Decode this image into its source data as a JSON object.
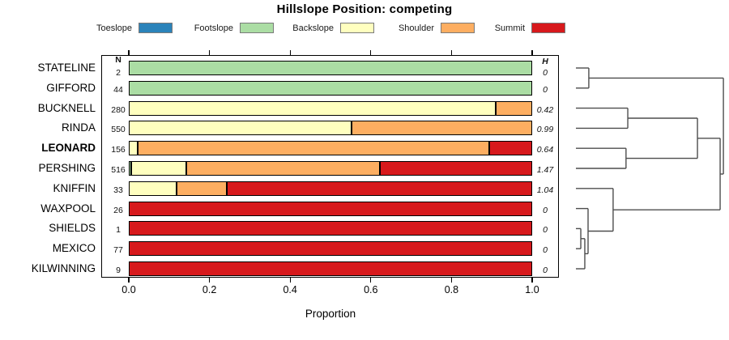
{
  "title": "Hillslope Position: competing",
  "legend": {
    "items": [
      {
        "label": "Toeslope",
        "color": "#2B83BA"
      },
      {
        "label": "Footslope",
        "color": "#ABDDA4"
      },
      {
        "label": "Backslope",
        "color": "#FFFFBF"
      },
      {
        "label": "Shoulder",
        "color": "#FDAE61"
      },
      {
        "label": "Summit",
        "color": "#D7191C"
      }
    ]
  },
  "columns": {
    "n_header": "N",
    "h_header": "H"
  },
  "xaxis": {
    "label": "Proportion",
    "tick_labels": [
      "0.0",
      "0.2",
      "0.4",
      "0.6",
      "0.8",
      "1.0"
    ]
  },
  "chart_data": {
    "type": "bar",
    "subtype": "stacked-horizontal-proportions-with-dendrogram",
    "title": "Hillslope Position: competing",
    "xlabel": "Proportion",
    "xlim": [
      0,
      1
    ],
    "xticks": [
      0,
      0.2,
      0.4,
      0.6,
      0.8,
      1.0
    ],
    "classes": [
      "Toeslope",
      "Footslope",
      "Backslope",
      "Shoulder",
      "Summit"
    ],
    "colors": {
      "Toeslope": "#2B83BA",
      "Footslope": "#ABDDA4",
      "Backslope": "#FFFFBF",
      "Shoulder": "#FDAE61",
      "Summit": "#D7191C"
    },
    "rows": [
      {
        "name": "STATELINE",
        "n": "2",
        "h": "0",
        "bold": false,
        "segments": [
          {
            "class": "Footslope",
            "p": 1.0
          }
        ]
      },
      {
        "name": "GIFFORD",
        "n": "44",
        "h": "0",
        "bold": false,
        "segments": [
          {
            "class": "Footslope",
            "p": 1.0
          }
        ]
      },
      {
        "name": "BUCKNELL",
        "n": "280",
        "h": "0.42",
        "bold": false,
        "segments": [
          {
            "class": "Backslope",
            "p": 0.91
          },
          {
            "class": "Shoulder",
            "p": 0.09
          }
        ]
      },
      {
        "name": "RINDA",
        "n": "550",
        "h": "0.99",
        "bold": false,
        "segments": [
          {
            "class": "Backslope",
            "p": 0.553
          },
          {
            "class": "Shoulder",
            "p": 0.447
          }
        ]
      },
      {
        "name": "LEONARD",
        "n": "156",
        "h": "0.64",
        "bold": true,
        "segments": [
          {
            "class": "Backslope",
            "p": 0.022
          },
          {
            "class": "Shoulder",
            "p": 0.871
          },
          {
            "class": "Summit",
            "p": 0.107
          }
        ]
      },
      {
        "name": "PERSHING",
        "n": "516",
        "h": "1.47",
        "bold": false,
        "segments": [
          {
            "class": "Footslope",
            "p": 0.006
          },
          {
            "class": "Backslope",
            "p": 0.137
          },
          {
            "class": "Shoulder",
            "p": 0.479
          },
          {
            "class": "Summit",
            "p": 0.378
          }
        ]
      },
      {
        "name": "KNIFFIN",
        "n": "33",
        "h": "1.04",
        "bold": false,
        "segments": [
          {
            "class": "Backslope",
            "p": 0.119
          },
          {
            "class": "Shoulder",
            "p": 0.123
          },
          {
            "class": "Summit",
            "p": 0.758
          }
        ]
      },
      {
        "name": "WAXPOOL",
        "n": "26",
        "h": "0",
        "bold": false,
        "segments": [
          {
            "class": "Summit",
            "p": 1.0
          }
        ]
      },
      {
        "name": "SHIELDS",
        "n": "1",
        "h": "0",
        "bold": false,
        "segments": [
          {
            "class": "Summit",
            "p": 1.0
          }
        ]
      },
      {
        "name": "MEXICO",
        "n": "77",
        "h": "0",
        "bold": false,
        "segments": [
          {
            "class": "Summit",
            "p": 1.0
          }
        ]
      },
      {
        "name": "KILWINNING",
        "n": "9",
        "h": "0",
        "bold": false,
        "segments": [
          {
            "class": "Summit",
            "p": 1.0
          }
        ]
      }
    ],
    "dendrogram": {
      "h": 0.995,
      "children": [
        {
          "h": 0.087,
          "children": [
            "STATELINE",
            "GIFFORD"
          ]
        },
        {
          "h": 0.973,
          "children": [
            {
              "h": 0.82,
              "children": [
                {
                  "h": 0.35,
                  "children": [
                    "BUCKNELL",
                    "RINDA"
                  ]
                },
                {
                  "h": 0.338,
                  "children": [
                    "LEONARD",
                    "PERSHING"
                  ]
                }
              ]
            },
            {
              "h": 0.251,
              "children": [
                "KNIFFIN",
                {
                  "h": 0.082,
                  "children": [
                    "WAXPOOL",
                    {
                      "h": 0.06,
                      "children": [
                        {
                          "h": 0.033,
                          "children": [
                            "SHIELDS",
                            "MEXICO"
                          ]
                        },
                        "KILWINNING"
                      ]
                    }
                  ]
                }
              ]
            }
          ]
        }
      ]
    }
  }
}
